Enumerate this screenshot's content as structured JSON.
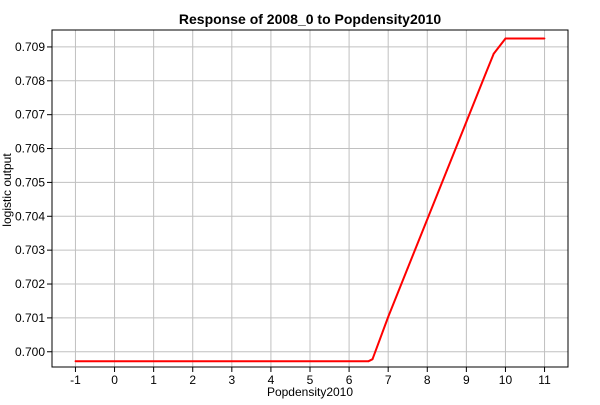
{
  "chart_data": {
    "type": "line",
    "title": "Response of 2008_0 to Popdensity2010",
    "xlabel": "Popdensity2010",
    "ylabel": "logistic output",
    "xlim": [
      -1.6,
      11.6
    ],
    "ylim": [
      0.69955,
      0.7095
    ],
    "xticks": [
      -1,
      0,
      1,
      2,
      3,
      4,
      5,
      6,
      7,
      8,
      9,
      10,
      11
    ],
    "xtick_labels": [
      "-1",
      "0",
      "1",
      "2",
      "3",
      "4",
      "5",
      "6",
      "7",
      "8",
      "9",
      "10",
      "11"
    ],
    "yticks": [
      0.7,
      0.701,
      0.702,
      0.703,
      0.704,
      0.705,
      0.706,
      0.707,
      0.708,
      0.709
    ],
    "ytick_labels": [
      "0.700",
      "0.701",
      "0.702",
      "0.703",
      "0.704",
      "0.705",
      "0.706",
      "0.707",
      "0.708",
      "0.709"
    ],
    "grid": true,
    "legend": "none",
    "series": [
      {
        "color": "#ff0000",
        "x": [
          -1,
          6.5,
          6.6,
          7.0,
          7.5,
          8.0,
          8.5,
          9.0,
          9.5,
          9.7,
          10.0,
          11.0
        ],
        "y": [
          0.69972,
          0.69972,
          0.69978,
          0.70103,
          0.70247,
          0.70391,
          0.70535,
          0.70679,
          0.70823,
          0.7088,
          0.70925,
          0.70925
        ]
      }
    ]
  }
}
